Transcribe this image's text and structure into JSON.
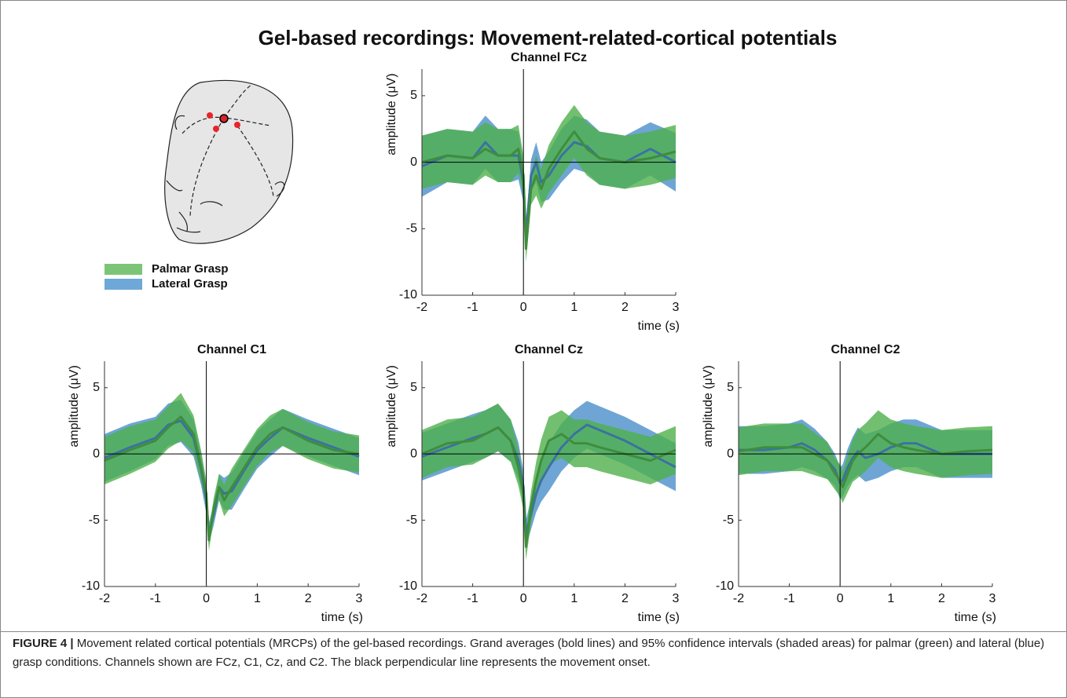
{
  "title": "Gel-based recordings: Movement-related-cortical potentials",
  "legend": [
    {
      "name": "Palmar Grasp",
      "color": "#7cc576"
    },
    {
      "name": "Lateral Grasp",
      "color": "#6ea8d8"
    }
  ],
  "caption": {
    "label": "FIGURE 4 |",
    "text": "Movement related cortical potentials (MRCPs) of the gel-based recordings. Grand averages (bold lines) and 95% confidence intervals (shaded areas) for palmar (green) and lateral (blue) grasp conditions. Channels shown are FCz, C1, Cz, and C2. The black perpendicular line represents the movement onset."
  },
  "chart_data": [
    {
      "type": "line",
      "title": "Channel FCz",
      "xlabel": "time (s)",
      "ylabel": "amplitude (μV)",
      "x": [
        -2,
        -1.5,
        -1,
        -0.75,
        -0.5,
        -0.25,
        -0.1,
        0,
        0.05,
        0.15,
        0.25,
        0.35,
        0.5,
        0.75,
        1,
        1.25,
        1.5,
        2,
        2.5,
        3
      ],
      "series": [
        {
          "color": "#4a8fcb",
          "values": [
            -0.3,
            0.5,
            0.3,
            1.5,
            0.5,
            0.5,
            0.5,
            -1.5,
            -5.5,
            -1,
            0,
            -1.5,
            -1,
            0.5,
            1.5,
            1.2,
            0.3,
            0,
            1,
            0
          ],
          "ci": [
            2.3,
            2,
            2,
            2,
            2,
            2,
            1.8,
            1.5,
            1,
            1.2,
            1.5,
            1.5,
            1.8,
            2,
            2,
            2,
            2,
            2,
            2,
            2.2
          ]
        },
        {
          "color": "#4fb04b",
          "values": [
            0,
            0.5,
            0.3,
            1,
            0.5,
            0.5,
            1,
            -1,
            -6.5,
            -2,
            -1,
            -2,
            -0.5,
            1,
            2.3,
            1,
            0.3,
            0,
            0.3,
            0.8
          ],
          "ci": [
            2,
            2,
            2,
            2,
            2,
            2,
            1.8,
            1.5,
            1,
            1.2,
            1.5,
            1.5,
            1.8,
            2,
            2,
            2,
            2,
            2,
            2,
            2
          ]
        }
      ],
      "xlim": [
        -2,
        3
      ],
      "ylim": [
        -10,
        7
      ],
      "xticks": [
        -2,
        -1,
        0,
        1,
        2,
        3
      ],
      "yticks": [
        -10,
        -5,
        0,
        5
      ],
      "hline": 0,
      "vline": 0
    },
    {
      "type": "line",
      "title": "Channel C1",
      "xlabel": "time (s)",
      "ylabel": "amplitude (μV)",
      "x": [
        -2,
        -1.5,
        -1,
        -0.75,
        -0.5,
        -0.25,
        -0.1,
        0,
        0.05,
        0.15,
        0.25,
        0.35,
        0.5,
        0.75,
        1,
        1.25,
        1.5,
        2,
        2.5,
        3
      ],
      "series": [
        {
          "color": "#4a8fcb",
          "values": [
            -0.3,
            0.5,
            1.2,
            2.2,
            2.5,
            1.2,
            -1.2,
            -3.5,
            -6,
            -4.5,
            -2.5,
            -3,
            -2.8,
            -1.2,
            0.3,
            1.2,
            2,
            1.2,
            0.5,
            -0.2
          ],
          "ci": [
            1.8,
            1.8,
            1.6,
            1.6,
            1.6,
            1.4,
            1.2,
            1,
            0.8,
            0.8,
            1,
            1.2,
            1.4,
            1.4,
            1.4,
            1.4,
            1.4,
            1.4,
            1.4,
            1.4
          ]
        },
        {
          "color": "#4fb04b",
          "values": [
            -0.5,
            0.3,
            1,
            2,
            2.8,
            1.5,
            -1,
            -3,
            -6.5,
            -4,
            -2.5,
            -3.5,
            -2.5,
            -1,
            0.5,
            1.5,
            2,
            1,
            0.3,
            0
          ],
          "ci": [
            1.8,
            1.8,
            1.6,
            1.6,
            1.8,
            1.4,
            1.2,
            1,
            0.8,
            0.8,
            1,
            1.2,
            1.4,
            1.4,
            1.4,
            1.4,
            1.4,
            1.4,
            1.4,
            1.4
          ]
        }
      ],
      "xlim": [
        -2,
        3
      ],
      "ylim": [
        -10,
        7
      ],
      "xticks": [
        -2,
        -1,
        0,
        1,
        2,
        3
      ],
      "yticks": [
        -10,
        -5,
        0,
        5
      ],
      "hline": 0,
      "vline": 0
    },
    {
      "type": "line",
      "title": "Channel Cz",
      "xlabel": "time (s)",
      "ylabel": "amplitude (μV)",
      "x": [
        -2,
        -1.5,
        -1,
        -0.75,
        -0.5,
        -0.25,
        -0.1,
        0,
        0.05,
        0.15,
        0.25,
        0.35,
        0.5,
        0.75,
        1,
        1.25,
        1.5,
        2,
        2.5,
        3
      ],
      "series": [
        {
          "color": "#4a8fcb",
          "values": [
            -0.2,
            0.5,
            1.2,
            1.5,
            2,
            1,
            -0.5,
            -2.5,
            -6,
            -4.5,
            -3,
            -2,
            -1,
            0.5,
            1.5,
            2.2,
            1.8,
            1,
            0,
            -1
          ],
          "ci": [
            1.8,
            1.8,
            1.8,
            1.8,
            1.8,
            1.6,
            1.4,
            1.2,
            1,
            1.2,
            1.4,
            1.6,
            1.8,
            1.8,
            1.8,
            1.8,
            1.8,
            1.8,
            1.8,
            1.8
          ]
        },
        {
          "color": "#4fb04b",
          "values": [
            0,
            0.8,
            1,
            1.5,
            2,
            1,
            -1,
            -3,
            -7,
            -4,
            -2,
            -0.5,
            1,
            1.5,
            0.8,
            0.8,
            0.5,
            0,
            -0.5,
            0.3
          ],
          "ci": [
            1.8,
            1.8,
            1.8,
            1.8,
            1.8,
            1.6,
            1.4,
            1.2,
            1,
            1.2,
            1.4,
            1.6,
            1.8,
            1.8,
            1.8,
            1.8,
            1.8,
            1.8,
            1.8,
            1.8
          ]
        }
      ],
      "xlim": [
        -2,
        3
      ],
      "ylim": [
        -10,
        7
      ],
      "xticks": [
        -2,
        -1,
        0,
        1,
        2,
        3
      ],
      "yticks": [
        -10,
        -5,
        0,
        5
      ],
      "hline": 0,
      "vline": 0
    },
    {
      "type": "line",
      "title": "Channel C2",
      "xlabel": "time (s)",
      "ylabel": "amplitude (μV)",
      "x": [
        -2,
        -1.5,
        -1,
        -0.75,
        -0.5,
        -0.25,
        -0.1,
        0,
        0.05,
        0.15,
        0.25,
        0.35,
        0.5,
        0.75,
        1,
        1.25,
        1.5,
        2,
        2.5,
        3
      ],
      "series": [
        {
          "color": "#4a8fcb",
          "values": [
            0.3,
            0.3,
            0.5,
            0.8,
            0.3,
            -0.5,
            -1.2,
            -2.2,
            -2,
            -1,
            -0.3,
            0.2,
            -0.3,
            0,
            0.5,
            0.8,
            0.8,
            0,
            0,
            0
          ],
          "ci": [
            1.8,
            1.8,
            1.8,
            1.8,
            1.6,
            1.4,
            1.2,
            1.2,
            1.2,
            1.4,
            1.6,
            1.8,
            1.8,
            1.8,
            1.8,
            1.8,
            1.8,
            1.8,
            1.8,
            1.8
          ]
        },
        {
          "color": "#4fb04b",
          "values": [
            0.2,
            0.5,
            0.5,
            0.5,
            0,
            -0.5,
            -1.5,
            -2,
            -2.5,
            -1.5,
            -0.5,
            0,
            0.5,
            1.5,
            0.8,
            0.5,
            0.3,
            0,
            0.2,
            0.3
          ],
          "ci": [
            1.8,
            1.8,
            1.8,
            1.8,
            1.6,
            1.4,
            1.2,
            1.2,
            1.2,
            1.4,
            1.6,
            1.8,
            1.8,
            1.8,
            1.8,
            1.8,
            1.8,
            1.8,
            1.8,
            1.8
          ]
        }
      ],
      "xlim": [
        -2,
        3
      ],
      "ylim": [
        -10,
        7
      ],
      "xticks": [
        -2,
        -1,
        0,
        1,
        2,
        3
      ],
      "yticks": [
        -10,
        -5,
        0,
        5
      ],
      "hline": 0,
      "vline": 0
    }
  ]
}
